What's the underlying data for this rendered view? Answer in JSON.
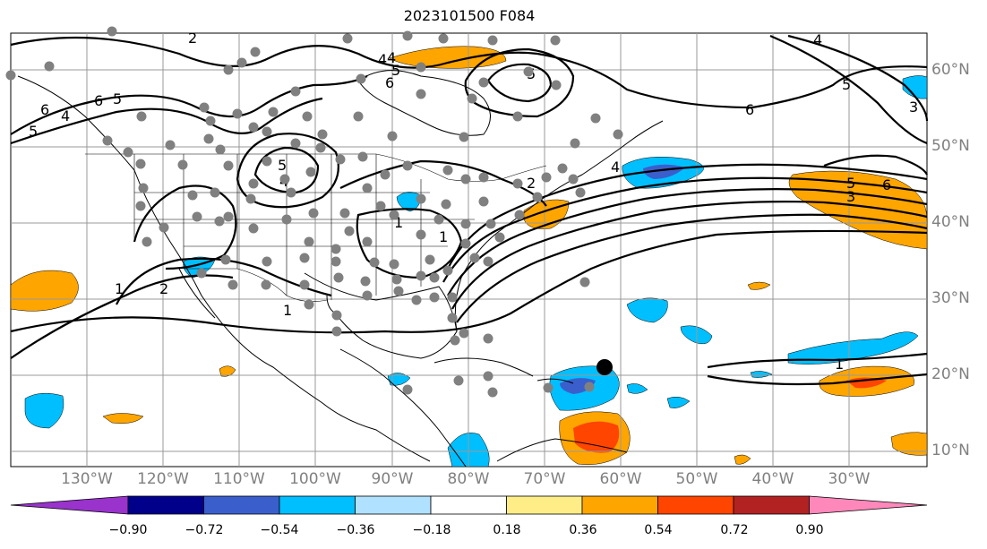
{
  "title": "2023101500 F084",
  "lat_labels": [
    "60°N",
    "50°N",
    "40°N",
    "30°N",
    "20°N",
    "10°N"
  ],
  "lon_labels": [
    "130°W",
    "120°W",
    "110°W",
    "100°W",
    "90°W",
    "80°W",
    "70°W",
    "60°W",
    "50°W",
    "40°W",
    "30°W"
  ],
  "colorbar": {
    "ticks": [
      "−0.90",
      "−0.72",
      "−0.54",
      "−0.36",
      "−0.18",
      "0.18",
      "0.36",
      "0.54",
      "0.72",
      "0.90"
    ],
    "colors": [
      "#9933cc",
      "#00008b",
      "#3a5fcd",
      "#00bfff",
      "#b0e2ff",
      "#ffffff",
      "#ffee88",
      "#ffa500",
      "#ff4500",
      "#b22222",
      "#ff88bb"
    ]
  },
  "contour_labels": [
    "6",
    "4",
    "6",
    "5",
    "5",
    "4",
    "6",
    "5",
    "5",
    "6",
    "3",
    "4",
    "5",
    "4",
    "2",
    "4",
    "1",
    "1",
    "2",
    "1",
    "1",
    "2",
    "3",
    "4",
    "5",
    "6",
    "5",
    "1"
  ],
  "fill_colors": {
    "blue_light": "#b0e2ff",
    "blue": "#00bfff",
    "blue_dark": "#3a5fcd",
    "orange": "#ffa500",
    "orange_red": "#ff4500",
    "yellow": "#ffee88"
  },
  "marker_color": "#808080",
  "storm_center_color": "#000000"
}
